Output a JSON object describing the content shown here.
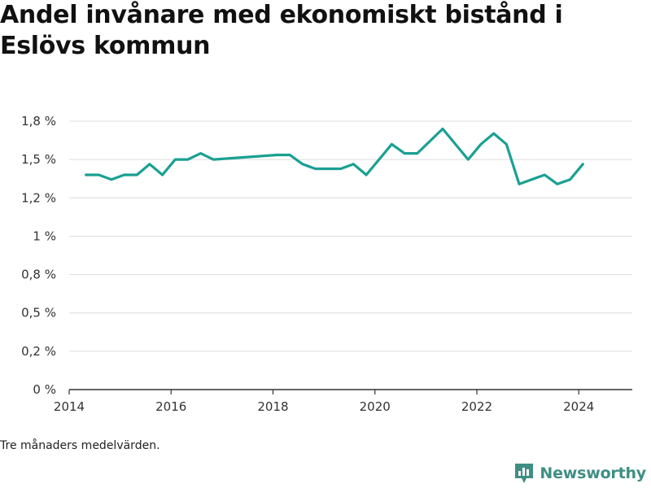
{
  "title": "Andel invånare med ekonomiskt bistånd i Eslövs kommun",
  "footnote": "Tre månaders medelvärden.",
  "brand": {
    "name": "Newsworthy",
    "icon": "newsworthy-logo-icon",
    "color": "#3f8e84"
  },
  "chart_data": {
    "type": "line",
    "title": "Andel invånare med ekonomiskt bistånd i Eslövs kommun",
    "xlabel": "",
    "ylabel": "",
    "xlim": [
      2014.0,
      2025.05
    ],
    "ylim": [
      0,
      1.75
    ],
    "x_ticks": [
      {
        "value": 2014,
        "label": "2014"
      },
      {
        "value": 2016,
        "label": "2016"
      },
      {
        "value": 2018,
        "label": "2018"
      },
      {
        "value": 2020,
        "label": "2020"
      },
      {
        "value": 2022,
        "label": "2022"
      },
      {
        "value": 2024,
        "label": "2024"
      }
    ],
    "y_ticks": [
      {
        "value": 0,
        "label": "0 %"
      },
      {
        "value": 0.25,
        "label": "0,2 %"
      },
      {
        "value": 0.5,
        "label": "0,5 %"
      },
      {
        "value": 0.75,
        "label": "0,8 %"
      },
      {
        "value": 1.0,
        "label": "1 %"
      },
      {
        "value": 1.25,
        "label": "1,2 %"
      },
      {
        "value": 1.5,
        "label": "1,5 %"
      },
      {
        "value": 1.75,
        "label": "1,8 %"
      }
    ],
    "grid": true,
    "legend": "none",
    "color": "#1aa093",
    "series": [
      {
        "x": [
          2014.33,
          2014.58,
          2014.83,
          2015.08,
          2015.33,
          2015.58,
          2015.83,
          2016.08,
          2016.33,
          2016.58,
          2016.83,
          2018.08,
          2018.33,
          2018.58,
          2018.83,
          2019.08,
          2019.33,
          2019.58,
          2019.83,
          2020.08,
          2020.33,
          2020.58,
          2020.83,
          2021.33,
          2021.83,
          2022.08,
          2022.33,
          2022.58,
          2022.83,
          2023.33,
          2023.58,
          2023.83,
          2024.08
        ],
        "values": [
          1.4,
          1.4,
          1.37,
          1.4,
          1.4,
          1.47,
          1.4,
          1.5,
          1.5,
          1.54,
          1.5,
          1.53,
          1.53,
          1.47,
          1.44,
          1.44,
          1.44,
          1.47,
          1.4,
          1.5,
          1.6,
          1.54,
          1.54,
          1.7,
          1.5,
          1.6,
          1.67,
          1.6,
          1.34,
          1.4,
          1.34,
          1.37,
          1.47
        ]
      }
    ]
  }
}
